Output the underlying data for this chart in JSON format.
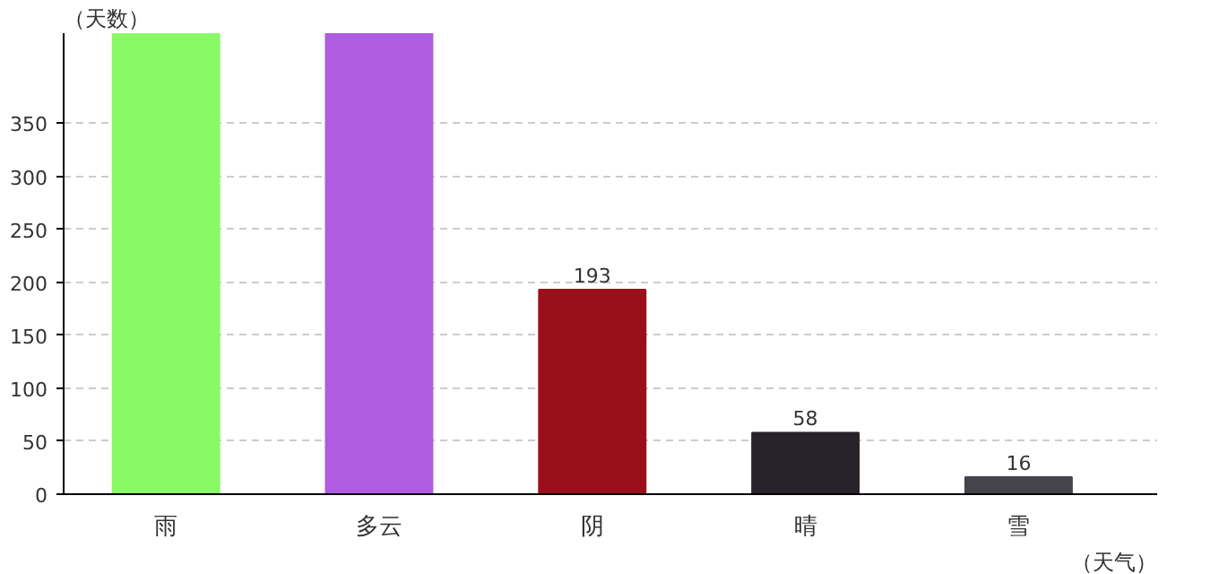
{
  "chart_data": {
    "type": "bar",
    "xlabel": "（天气）",
    "ylabel": "（天数）",
    "categories": [
      "雨",
      "多云",
      "阴",
      "晴",
      "雪"
    ],
    "values": [
      435,
      435,
      193,
      58,
      16
    ],
    "colors": [
      "#8af966",
      "#b05ce0",
      "#9b0f1a",
      "#28232b",
      "#45444b"
    ],
    "value_labels": [
      null,
      null,
      "193",
      "58",
      "16"
    ],
    "ylim": [
      0,
      435
    ],
    "yticks": [
      0,
      50,
      100,
      150,
      200,
      250,
      300,
      350
    ],
    "grid": "y"
  }
}
